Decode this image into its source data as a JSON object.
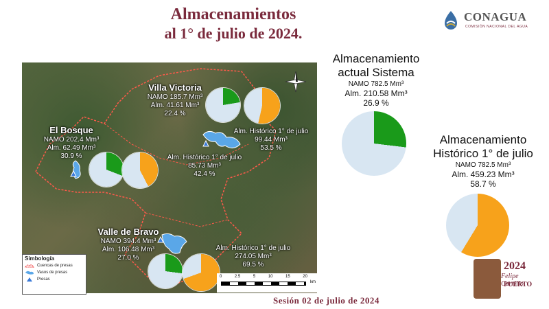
{
  "header": {
    "title_line1": "Almacenamientos",
    "title_line2": "al 1° de julio de 2024."
  },
  "logo": {
    "name": "CONAGUA",
    "subtitle": "COMISIÓN NACIONAL DEL AGUA"
  },
  "reservoirs": [
    {
      "name": "Villa Victoria",
      "namo": "NAMO 185.7 Mm³",
      "alm": "Alm. 41.61 Mm³",
      "pct": "22.4 %",
      "hist_label": "Alm. Histórico 1° de julio",
      "hist_value": "99.44 Mm³",
      "hist_pct": "53.5 %",
      "current_fraction": 0.224,
      "hist_fraction": 0.535
    },
    {
      "name": "El Bosque",
      "namo": "NAMO 202.4 Mm³",
      "alm": "Alm. 62.49 Mm³",
      "pct": "30.9 %",
      "hist_label": "Alm. Histórico 1° de julio",
      "hist_value": "85.73 Mm³",
      "hist_pct": "42.4 %",
      "current_fraction": 0.309,
      "hist_fraction": 0.424
    },
    {
      "name": "Valle de Bravo",
      "namo": "NAMO 394.4 Mm³",
      "alm": "Alm. 106.48 Mm³",
      "pct": "27.0 %",
      "hist_label": "Alm. Histórico 1° de julio",
      "hist_value": "274.05 Mm³",
      "hist_pct": "69.5 %",
      "current_fraction": 0.27,
      "hist_fraction": 0.695
    }
  ],
  "system": {
    "title_line1": "Almacenamiento",
    "title_line2": "actual Sistema",
    "namo": "NAMO 782.5 Mm³",
    "alm": "Alm. 210.58 Mm³",
    "pct": "26.9 %",
    "fraction": 0.269
  },
  "historic": {
    "title_line1": "Almacenamiento",
    "title_line2": "Histórico 1° de julio",
    "namo": "NAMO 782.5 Mm³",
    "alm": "Alm. 459.23 Mm³",
    "pct": "58.7 %",
    "fraction": 0.587
  },
  "legend": {
    "title": "Simbología",
    "items": [
      "Cuencas de presas",
      "Vasos de presas",
      "Presas"
    ]
  },
  "scale": {
    "ticks": [
      "0",
      "2.5",
      "5",
      "10",
      "15",
      "20"
    ],
    "unit": "km"
  },
  "compass_label": "N",
  "session": "Sesión 02 de julio de 2024",
  "brand": {
    "year": "2024",
    "name": "Felipe Carrillo",
    "surname": "PUERTO"
  },
  "colors": {
    "current": "#1a9a1a",
    "historic": "#f7a21b",
    "empty": "#d8e6f2",
    "accent": "#7a2a3c"
  }
}
